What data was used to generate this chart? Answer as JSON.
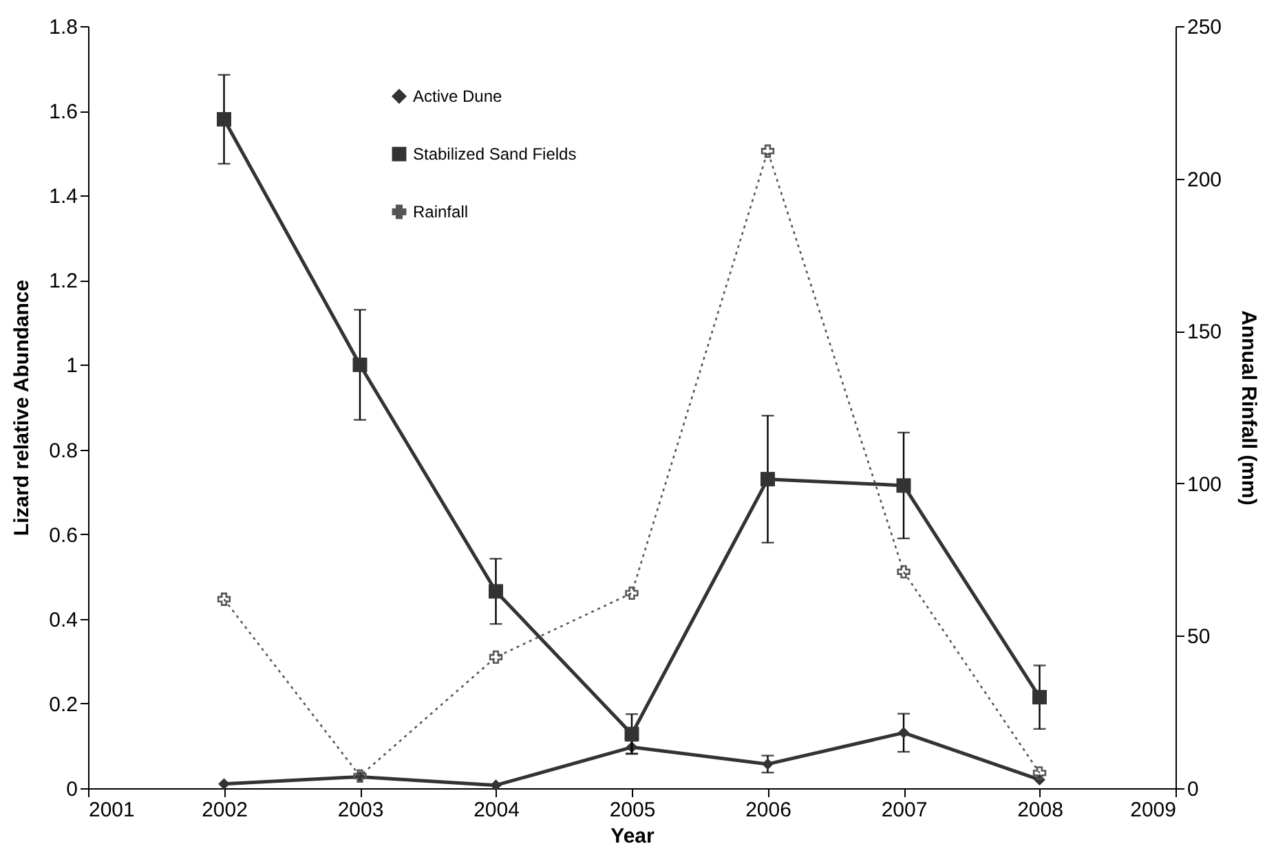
{
  "chart_data": {
    "type": "line",
    "xlabel": "Year",
    "ylabel": "Lizard relative Abundance",
    "y2label": "Annual Rinfall (mm)",
    "x": [
      2002,
      2003,
      2004,
      2005,
      2006,
      2007,
      2008
    ],
    "xlim": [
      2001,
      2009
    ],
    "xticks": [
      2001,
      2002,
      2003,
      2004,
      2005,
      2006,
      2007,
      2008,
      2009
    ],
    "ylim": [
      0,
      1.8
    ],
    "yticks": [
      0,
      0.2,
      0.4,
      0.6,
      0.8,
      1,
      1.2,
      1.4,
      1.6,
      1.8
    ],
    "y2lim": [
      0,
      250
    ],
    "y2ticks": [
      0,
      50,
      100,
      150,
      200,
      250
    ],
    "legend": "top",
    "grid": false,
    "series": [
      {
        "name": "Active Dune",
        "color": "#333333",
        "marker": "diamond",
        "line_style": "solid",
        "values": [
          0.01,
          0.027,
          0.007,
          0.097,
          0.057,
          0.131,
          0.02
        ],
        "errors": [
          null,
          null,
          null,
          0.015,
          0.02,
          0.045,
          null
        ]
      },
      {
        "name": "Stabilized Sand Fields",
        "color": "#333333",
        "marker": "square",
        "line_style": "solid",
        "values": [
          1.58,
          1.0,
          0.465,
          0.128,
          0.73,
          0.715,
          0.215
        ],
        "errors": [
          0.105,
          0.13,
          0.077,
          0.047,
          0.15,
          0.125,
          0.075
        ]
      },
      {
        "name": "Rainfall",
        "color": "#555555",
        "marker": "cross",
        "line_style": "dotted",
        "axis": "y2",
        "values": [
          62,
          4,
          43,
          64,
          209,
          71,
          5
        ]
      }
    ]
  }
}
